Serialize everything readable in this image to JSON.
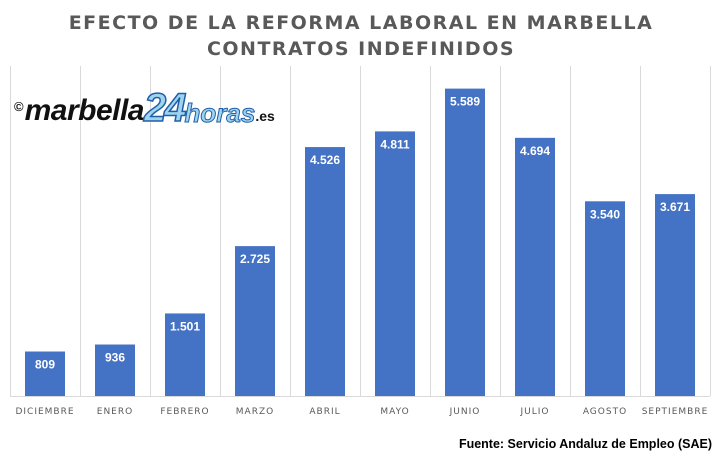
{
  "chart_data": {
    "type": "bar",
    "title": "EFECTO DE LA REFORMA LABORAL EN MARBELLA",
    "subtitle": "CONTRATOS INDEFINIDOS",
    "categories": [
      "DICIEMBRE",
      "ENERO",
      "FEBRERO",
      "MARZO",
      "ABRIL",
      "MAYO",
      "JUNIO",
      "JULIO",
      "AGOSTO",
      "SEPTIEMBRE"
    ],
    "values": [
      809,
      936,
      1501,
      2725,
      4526,
      4811,
      5589,
      4694,
      3540,
      3671
    ],
    "value_labels": [
      "809",
      "936",
      "1.501",
      "2.725",
      "4.526",
      "4.811",
      "5.589",
      "4.694",
      "3.540",
      "3.671"
    ],
    "ylim": [
      0,
      6000
    ],
    "grid": true,
    "bar_color": "#4472c4",
    "grid_color": "#d9d9d9"
  },
  "watermark": {
    "copyright": "©",
    "brand": "marbella",
    "number": "24",
    "name": "horas",
    "tld": ".es"
  },
  "source": "Fuente: Servicio Andaluz de Empleo (SAE)"
}
